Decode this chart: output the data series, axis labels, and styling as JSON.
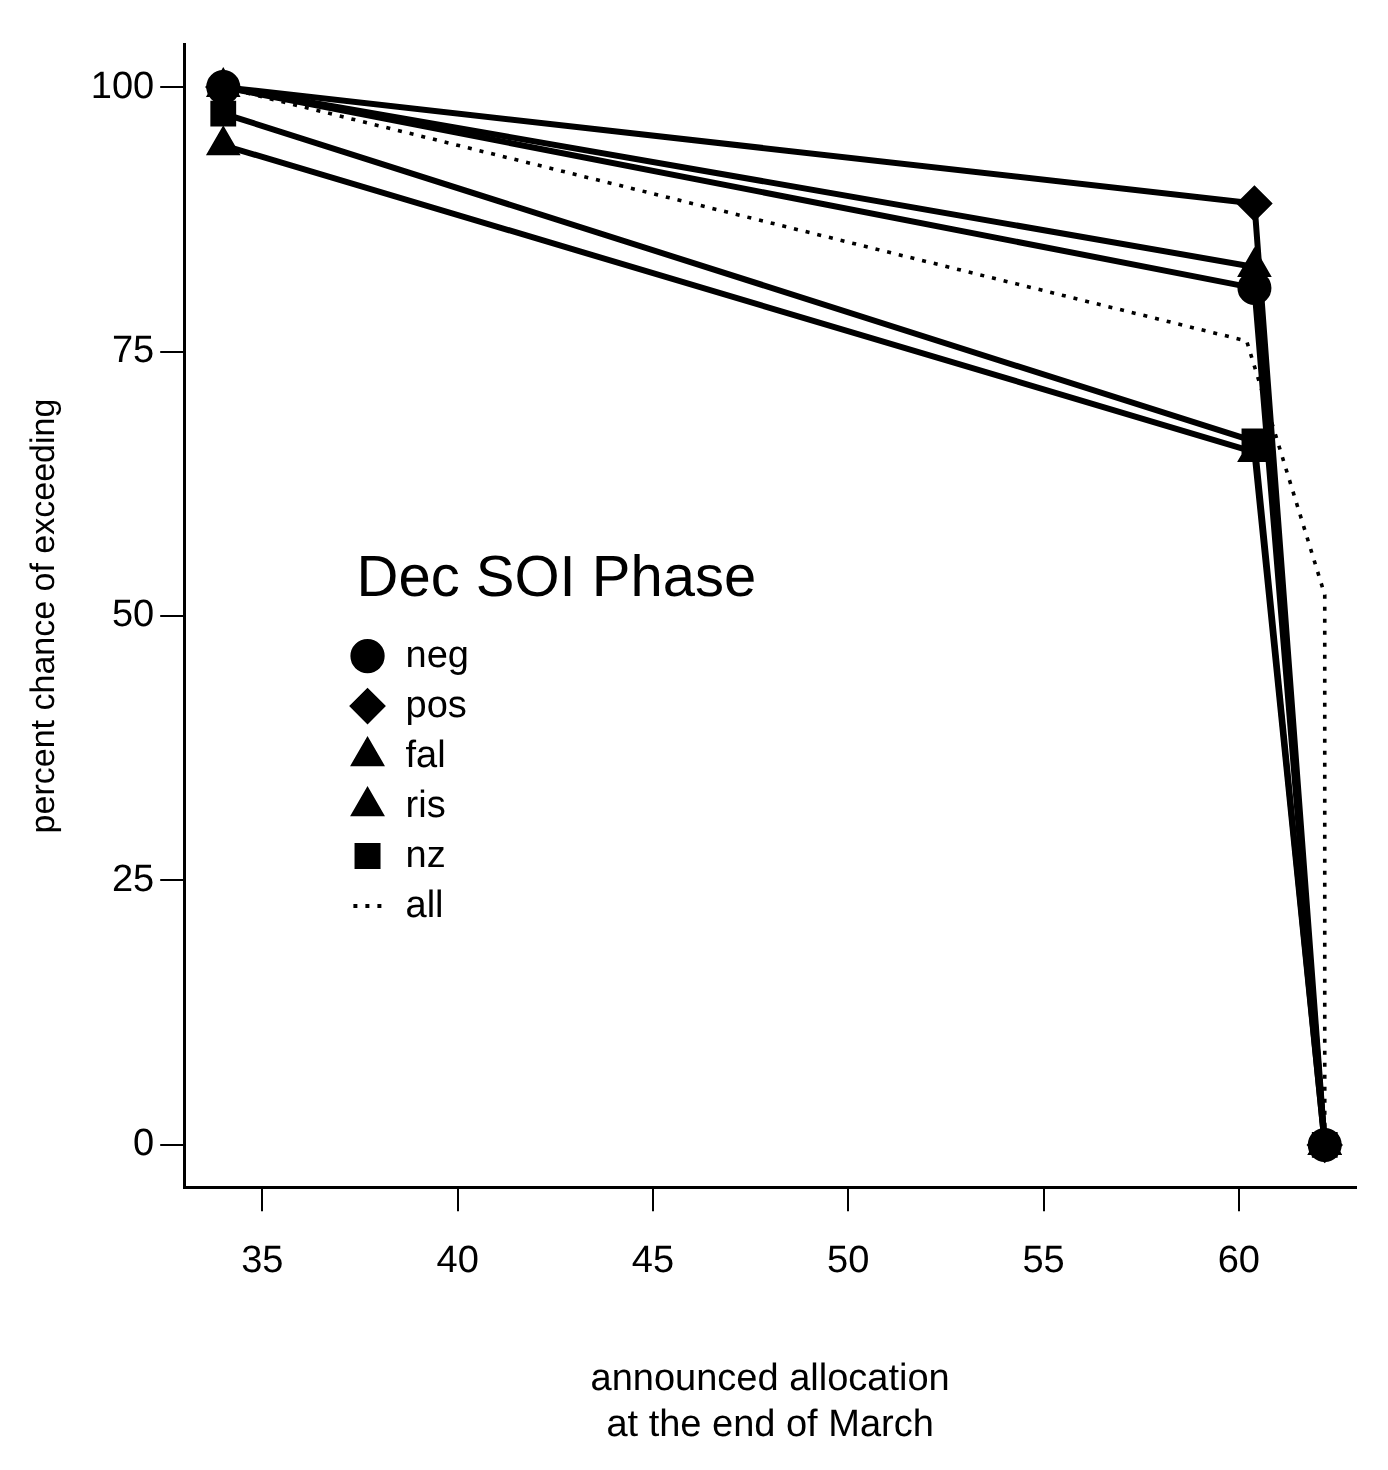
{
  "chart_data": {
    "type": "line",
    "xlabel": "announced allocation\nat the end of March",
    "ylabel": "percent chance of exceeding",
    "legend_title": "Dec SOI Phase",
    "legend": "left",
    "grid": false,
    "xlim": [
      33,
      63
    ],
    "xticks": [
      35,
      40,
      45,
      50,
      55,
      60
    ],
    "ylim": [
      -4,
      104
    ],
    "yticks": [
      0,
      25,
      50,
      75,
      100
    ],
    "series": [
      {
        "name": "neg",
        "color": "#000000",
        "marker": "circle",
        "line_style": "solid",
        "x": [
          34,
          60.4,
          62.2
        ],
        "values": [
          100,
          81,
          0
        ]
      },
      {
        "name": "pos",
        "color": "#000000",
        "marker": "diamond",
        "line_style": "solid",
        "x": [
          34,
          60.4,
          62.2
        ],
        "values": [
          100,
          89,
          0
        ]
      },
      {
        "name": "fal",
        "color": "#000000",
        "marker": "triangle",
        "line_style": "solid",
        "x": [
          34,
          60.4,
          62.2
        ],
        "values": [
          100,
          83,
          0
        ]
      },
      {
        "name": "ris",
        "color": "#000000",
        "marker": "triangle",
        "line_style": "solid",
        "x": [
          34,
          60.4,
          62.2
        ],
        "values": [
          94.5,
          65.5,
          0
        ]
      },
      {
        "name": "nz",
        "color": "#000000",
        "marker": "square",
        "line_style": "solid",
        "x": [
          34,
          60.4,
          62.2
        ],
        "values": [
          97.5,
          66.5,
          0
        ]
      },
      {
        "name": "all",
        "color": "#000000",
        "marker": "none",
        "line_style": "dotted",
        "x": [
          34,
          60.2,
          62.2,
          62.2
        ],
        "values": [
          100,
          76,
          52,
          0
        ]
      }
    ]
  }
}
